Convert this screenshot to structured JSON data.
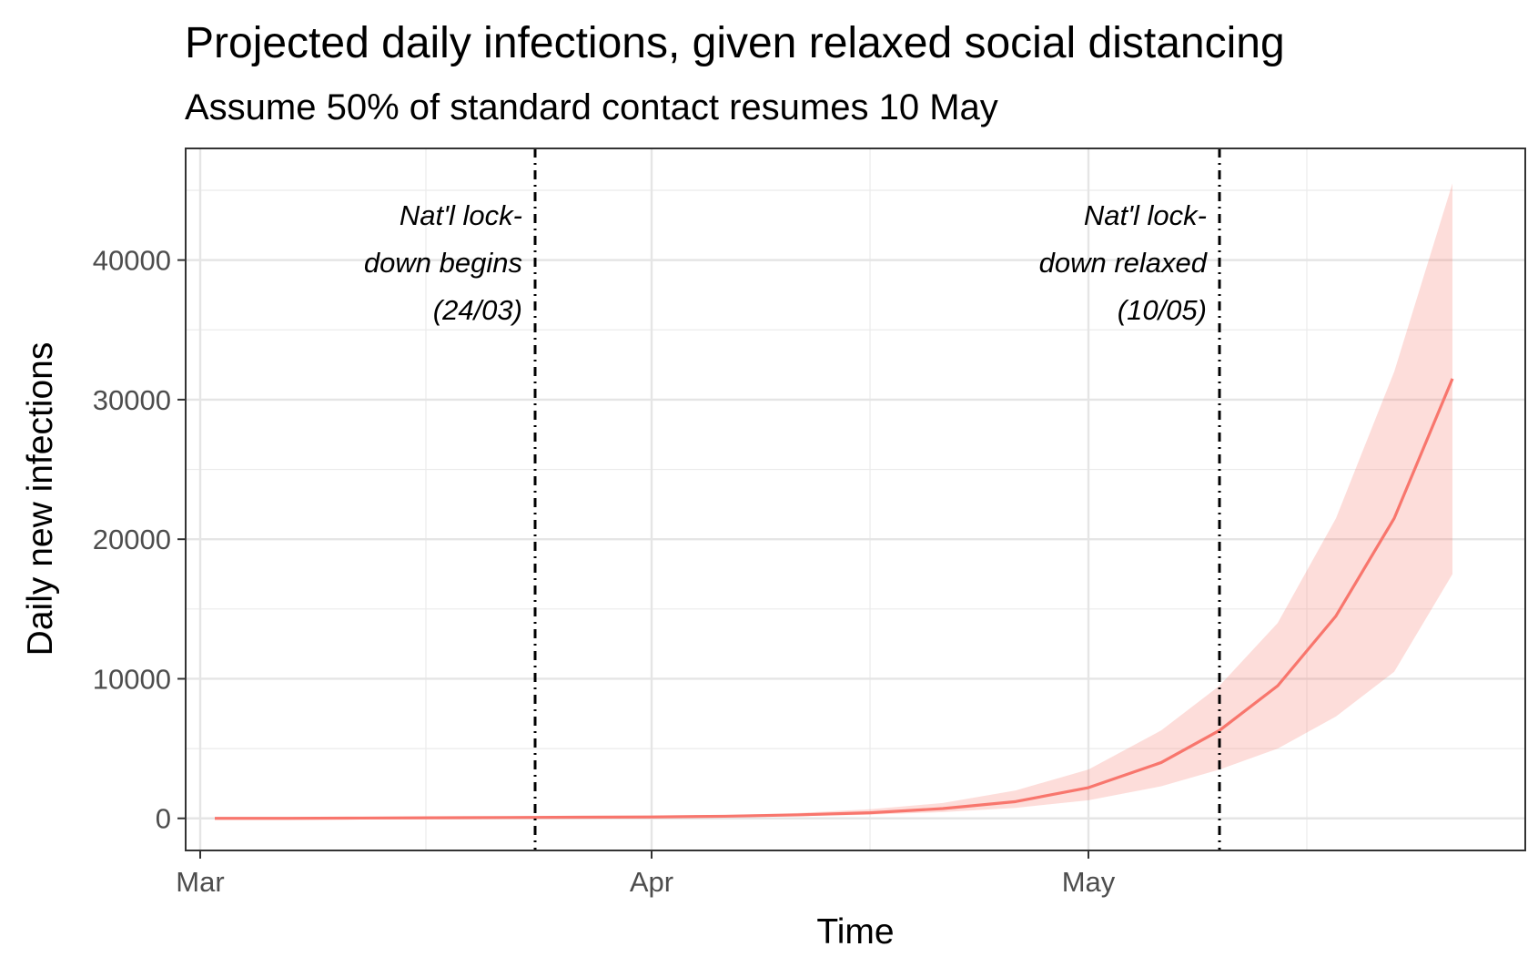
{
  "chart_data": {
    "type": "line",
    "title": "Projected daily infections, given relaxed social distancing",
    "subtitle": "Assume 50% of standard contact resumes 10 May",
    "xlabel": "Time",
    "ylabel": "Daily new infections",
    "x_range": [
      "2020-02-29",
      "2020-05-31"
    ],
    "ylim": [
      -2300,
      48000
    ],
    "x_ticks": [
      {
        "date": "2020-03-01",
        "label": "Mar"
      },
      {
        "date": "2020-04-01",
        "label": "Apr"
      },
      {
        "date": "2020-05-01",
        "label": "May"
      }
    ],
    "y_ticks": [
      0,
      10000,
      20000,
      30000,
      40000
    ],
    "grid": true,
    "series": [
      {
        "color": "#F8766D",
        "ribbon_color": "#F8766D",
        "ribbon_opacity": 0.25,
        "x": [
          "2020-03-02",
          "2020-03-07",
          "2020-03-12",
          "2020-03-17",
          "2020-03-22",
          "2020-03-27",
          "2020-04-01",
          "2020-04-06",
          "2020-04-11",
          "2020-04-16",
          "2020-04-21",
          "2020-04-26",
          "2020-05-01",
          "2020-05-06",
          "2020-05-10",
          "2020-05-14",
          "2020-05-18",
          "2020-05-22",
          "2020-05-26"
        ],
        "y": [
          0,
          0,
          20,
          40,
          60,
          80,
          100,
          150,
          250,
          400,
          700,
          1200,
          2200,
          4000,
          6300,
          9500,
          14500,
          21500,
          31500
        ],
        "lower": [
          0,
          0,
          10,
          20,
          30,
          40,
          60,
          100,
          160,
          260,
          450,
          750,
          1300,
          2300,
          3500,
          5000,
          7300,
          10500,
          17500
        ],
        "upper": [
          0,
          0,
          30,
          60,
          90,
          120,
          150,
          220,
          380,
          650,
          1100,
          2000,
          3500,
          6300,
          9500,
          14000,
          21500,
          32000,
          45500
        ]
      }
    ],
    "vlines": [
      {
        "date": "2020-03-24",
        "label_lines": [
          "Nat'l lock-",
          "down begins",
          "(24/03)"
        ]
      },
      {
        "date": "2020-05-10",
        "label_lines": [
          "Nat'l lock-",
          "down relaxed",
          "(10/05)"
        ]
      }
    ]
  }
}
